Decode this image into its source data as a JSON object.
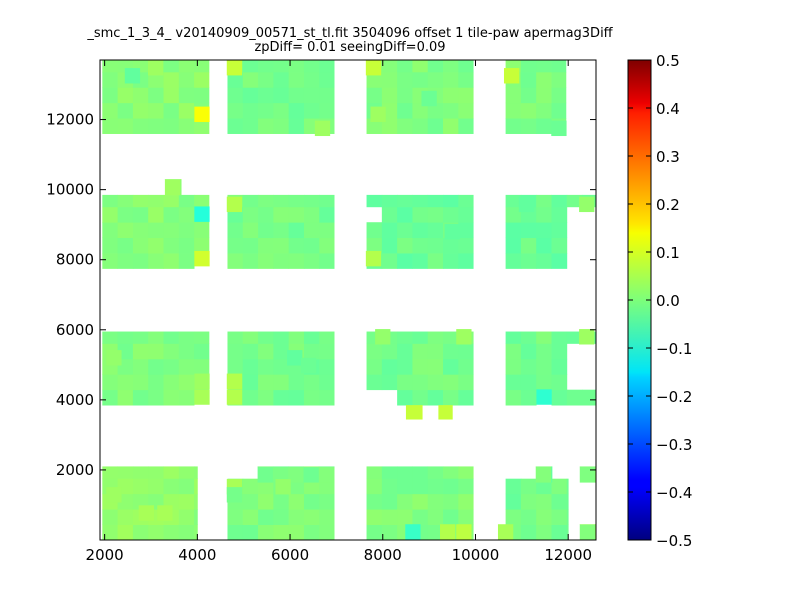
{
  "chart_data": {
    "type": "heatmap",
    "title": "_smc_1_3_4_ v20140909_00571_st_tl.fit 3504096 offset 1 tile-paw apermag3Diff",
    "subtitle": "zpDiff= 0.01 seeingDiff=0.09",
    "xlim": [
      1900,
      12600
    ],
    "ylim": [
      0,
      13700
    ],
    "x_ticks": [
      "2000",
      "4000",
      "6000",
      "8000",
      "10000",
      "12000"
    ],
    "y_ticks": [
      "2000",
      "4000",
      "6000",
      "8000",
      "10000",
      "12000"
    ],
    "cell_size": [
      330,
      440
    ],
    "colormap": "jet",
    "colorbar": {
      "min": -0.5,
      "max": 0.5,
      "ticks": [
        "0.5",
        "0.4",
        "0.3",
        "0.2",
        "0.1",
        "0.0",
        "−0.1",
        "−0.2",
        "−0.3",
        "−0.4",
        "−0.5"
      ]
    },
    "base_value": 0.0,
    "regions": [
      {
        "x0": 1950,
        "x1": 4250,
        "y0": 11600,
        "y1": 13700,
        "v": 0.01
      },
      {
        "x0": 4650,
        "x1": 6950,
        "y0": 11600,
        "y1": 13700,
        "v": -0.01
      },
      {
        "x0": 7650,
        "x1": 9950,
        "y0": 11600,
        "y1": 13700,
        "v": 0.0
      },
      {
        "x0": 10650,
        "x1": 11950,
        "y0": 11600,
        "y1": 13700,
        "v": 0.0
      },
      {
        "x0": 1950,
        "x1": 4250,
        "y0": 7750,
        "y1": 9850,
        "v": 0.01
      },
      {
        "x0": 4650,
        "x1": 6950,
        "y0": 7750,
        "y1": 9850,
        "v": -0.01
      },
      {
        "x0": 7650,
        "x1": 9950,
        "y0": 7750,
        "y1": 9850,
        "v": -0.02
      },
      {
        "x0": 10650,
        "x1": 12600,
        "y0": 7750,
        "y1": 9850,
        "v": -0.02
      },
      {
        "x0": 1950,
        "x1": 4250,
        "y0": 3850,
        "y1": 5950,
        "v": 0.0
      },
      {
        "x0": 4650,
        "x1": 6950,
        "y0": 3850,
        "y1": 5950,
        "v": -0.01
      },
      {
        "x0": 7650,
        "x1": 9950,
        "y0": 3850,
        "y1": 5950,
        "v": -0.01
      },
      {
        "x0": 10650,
        "x1": 12600,
        "y0": 3850,
        "y1": 5950,
        "v": -0.01
      },
      {
        "x0": 1950,
        "x1": 4000,
        "y0": 0,
        "y1": 2100,
        "v": 0.02
      },
      {
        "x0": 4650,
        "x1": 6950,
        "y0": 0,
        "y1": 1750,
        "v": 0.0
      },
      {
        "x0": 5300,
        "x1": 6950,
        "y0": 1650,
        "y1": 2100,
        "v": 0.0
      },
      {
        "x0": 7650,
        "x1": 9950,
        "y0": 0,
        "y1": 2100,
        "v": 0.0
      },
      {
        "x0": 10650,
        "x1": 12000,
        "y0": 0,
        "y1": 1750,
        "v": -0.01
      },
      {
        "x0": 11300,
        "x1": 11650,
        "y0": 1650,
        "y1": 2100,
        "v": -0.01
      },
      {
        "x0": 12250,
        "x1": 12600,
        "y0": 0,
        "y1": 450,
        "v": 0.01
      },
      {
        "x0": 12250,
        "x1": 12600,
        "y0": 1650,
        "y1": 2100,
        "v": 0.01
      },
      {
        "x0": 3300,
        "x1": 3650,
        "y0": 9850,
        "y1": 10300,
        "v": 0.02
      },
      {
        "x0": 8500,
        "x1": 8850,
        "y0": 3450,
        "y1": 3850,
        "v": 0.06
      },
      {
        "x0": 9200,
        "x1": 9500,
        "y0": 3450,
        "y1": 3850,
        "v": 0.06
      }
    ],
    "holes": [
      {
        "x0": 4000,
        "x1": 4650,
        "y0": 0,
        "y1": 2100
      },
      {
        "x0": 4650,
        "x1": 5300,
        "y0": 1750,
        "y1": 2100
      },
      {
        "x0": 4000,
        "x1": 4250,
        "y0": 3850,
        "y1": 4300
      },
      {
        "x0": 7650,
        "x1": 8300,
        "y0": 3850,
        "y1": 4300
      },
      {
        "x0": 7650,
        "x1": 7950,
        "y0": 8950,
        "y1": 9400
      },
      {
        "x0": 11950,
        "x1": 12600,
        "y0": 4300,
        "y1": 5500
      },
      {
        "x0": 11300,
        "x1": 11650,
        "y0": 3850,
        "y1": 4300
      },
      {
        "x0": 11950,
        "x1": 12600,
        "y0": 7750,
        "y1": 9400
      },
      {
        "x0": 12000,
        "x1": 12250,
        "y0": 0,
        "y1": 2100
      },
      {
        "x0": 10650,
        "x1": 11000,
        "y0": 1750,
        "y1": 2100
      },
      {
        "x0": 4000,
        "x1": 4250,
        "y0": 7750,
        "y1": 8300
      }
    ],
    "special_cells": [
      {
        "x": 4100,
        "y": 12150,
        "v": 0.12
      },
      {
        "x": 4100,
        "y": 9300,
        "v": -0.09
      },
      {
        "x": 4100,
        "y": 8030,
        "v": 0.08
      },
      {
        "x": 4100,
        "y": 4080,
        "v": 0.04
      },
      {
        "x": 4100,
        "y": 4530,
        "v": 0.03
      },
      {
        "x": 8650,
        "y": 230,
        "v": -0.07
      },
      {
        "x": 9750,
        "y": 230,
        "v": 0.06
      },
      {
        "x": 9400,
        "y": 230,
        "v": 0.05
      },
      {
        "x": 7800,
        "y": 13480,
        "v": 0.07
      },
      {
        "x": 4800,
        "y": 13480,
        "v": 0.07
      },
      {
        "x": 10780,
        "y": 13250,
        "v": 0.07
      },
      {
        "x": 11480,
        "y": 4080,
        "v": -0.08
      },
      {
        "x": 2600,
        "y": 13250,
        "v": -0.03
      },
      {
        "x": 4800,
        "y": 4530,
        "v": 0.05
      },
      {
        "x": 4800,
        "y": 4080,
        "v": 0.05
      },
      {
        "x": 7800,
        "y": 8030,
        "v": 0.05
      },
      {
        "x": 4800,
        "y": 9580,
        "v": 0.05
      },
      {
        "x": 3100,
        "y": 13480,
        "v": 0.03
      },
      {
        "x": 6700,
        "y": 11750,
        "v": 0.03
      },
      {
        "x": 2200,
        "y": 1290,
        "v": 0.03
      },
      {
        "x": 2900,
        "y": 770,
        "v": 0.04
      },
      {
        "x": 3300,
        "y": 770,
        "v": 0.04
      },
      {
        "x": 10650,
        "y": 230,
        "v": 0.04
      },
      {
        "x": 4800,
        "y": 1520,
        "v": 0.04
      },
      {
        "x": 4800,
        "y": 1290,
        "v": -0.01
      },
      {
        "x": 12400,
        "y": 5800,
        "v": 0.03
      },
      {
        "x": 9750,
        "y": 5800,
        "v": 0.03
      },
      {
        "x": 8000,
        "y": 5800,
        "v": 0.02
      },
      {
        "x": 9500,
        "y": 8800,
        "v": -0.03
      },
      {
        "x": 11100,
        "y": 9580,
        "v": -0.03
      },
      {
        "x": 6100,
        "y": 5200,
        "v": -0.03
      },
      {
        "x": 6400,
        "y": 4980,
        "v": -0.02
      },
      {
        "x": 2200,
        "y": 5200,
        "v": 0.02
      },
      {
        "x": 11800,
        "y": 11750,
        "v": -0.02
      },
      {
        "x": 12400,
        "y": 9580,
        "v": 0.02
      },
      {
        "x": 5850,
        "y": 1520,
        "v": 0.02
      },
      {
        "x": 7900,
        "y": 12150,
        "v": 0.03
      },
      {
        "x": 9000,
        "y": 12600,
        "v": -0.02
      }
    ]
  }
}
